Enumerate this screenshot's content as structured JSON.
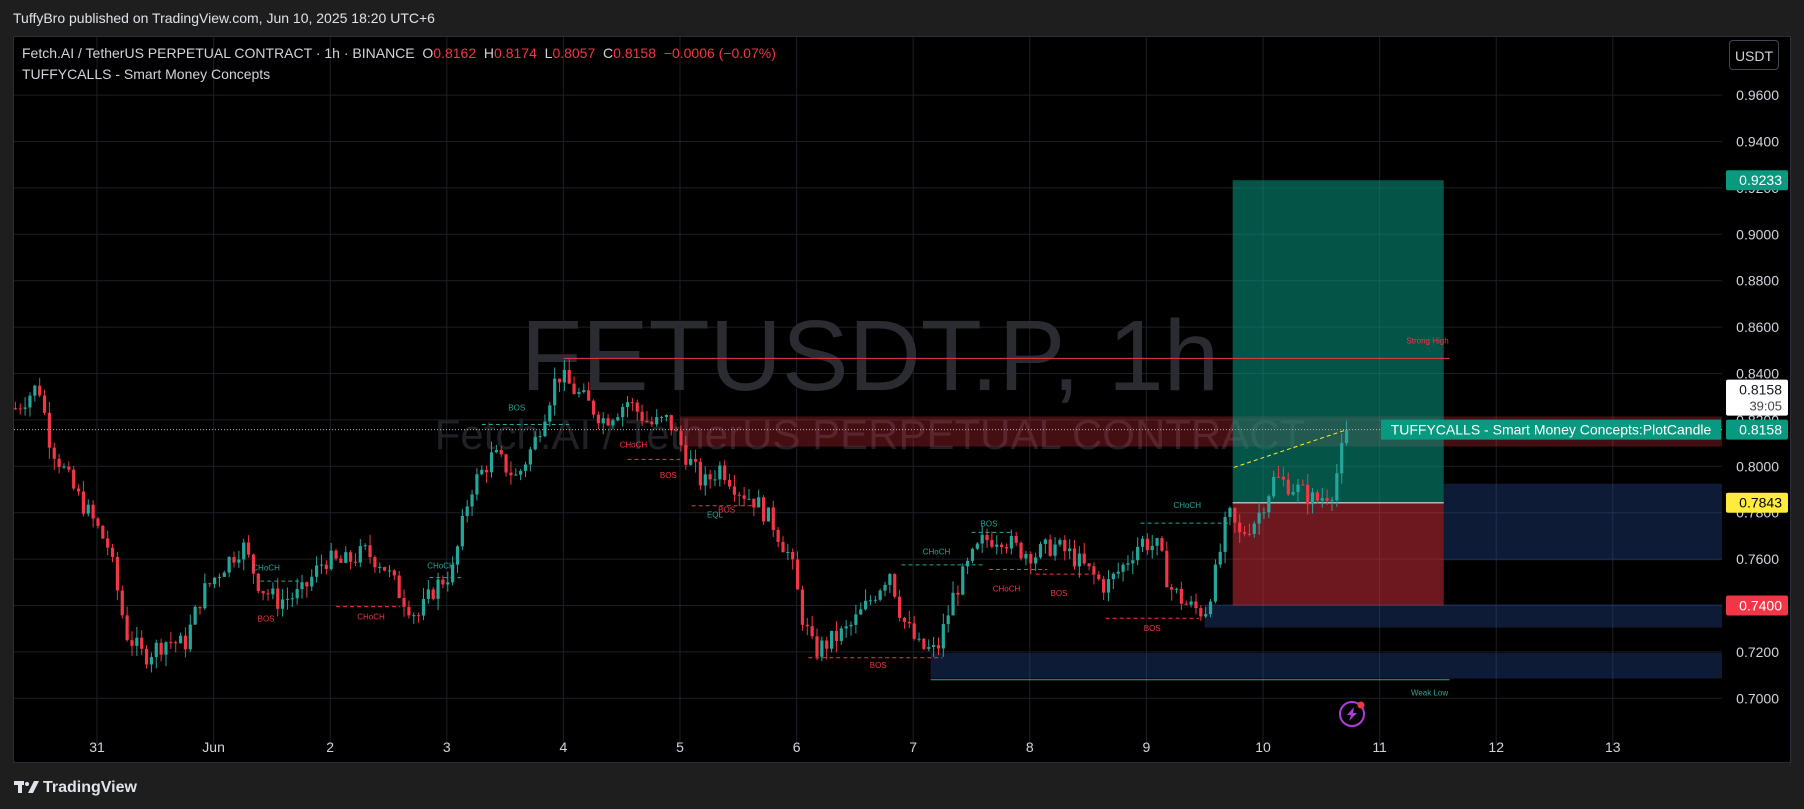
{
  "publish_line": "TuffyBro published on TradingView.com, Jun 10, 2025 18:20 UTC+6",
  "legend": {
    "symbol_line": "Fetch.AI / TetherUS PERPETUAL CONTRACT · 1h · BINANCE",
    "o_label": "O",
    "o_value": "0.8162",
    "h_label": "H",
    "h_value": "0.8174",
    "l_label": "L",
    "l_value": "0.8057",
    "c_label": "C",
    "c_value": "0.8158",
    "change": "−0.0006 (−0.07%)",
    "indicator": "TUFFYCALLS - Smart Money Concepts"
  },
  "currency_button": "USDT",
  "watermark": {
    "symbol": "FETUSDT.P, 1h",
    "name": "Fetch.AI / TetherUS PERPETUAL CONTRACT"
  },
  "footer_brand": "TradingView",
  "colors": {
    "up": "#26a69a",
    "down": "#f23645",
    "target": "#089981",
    "stop": "#f23645",
    "entry": "#ffeb3b"
  },
  "chart_data": {
    "type": "candlestick",
    "symbol": "FETUSDT.P",
    "interval": "1h",
    "ylim": [
      0.69,
      0.98
    ],
    "y_ticks": [
      "0.9600",
      "0.9400",
      "0.9200",
      "0.9000",
      "0.8800",
      "0.8600",
      "0.8400",
      "0.8200",
      "0.8000",
      "0.7800",
      "0.7600",
      "0.7400",
      "0.7200",
      "0.7000"
    ],
    "x_ticks": [
      {
        "label": "31",
        "pos": 0.0
      },
      {
        "label": "Jun",
        "pos": 1.0
      },
      {
        "label": "2",
        "pos": 2.0
      },
      {
        "label": "3",
        "pos": 3.0
      },
      {
        "label": "4",
        "pos": 4.0
      },
      {
        "label": "5",
        "pos": 5.0
      },
      {
        "label": "6",
        "pos": 6.0
      },
      {
        "label": "7",
        "pos": 7.0
      },
      {
        "label": "8",
        "pos": 8.0
      },
      {
        "label": "9",
        "pos": 9.0
      },
      {
        "label": "10",
        "pos": 10.0
      },
      {
        "label": "11",
        "pos": 11.0
      },
      {
        "label": "12",
        "pos": 12.0
      },
      {
        "label": "13",
        "pos": 13.0
      }
    ],
    "price_path": [
      [
        -0.7,
        0.825
      ],
      [
        -0.5,
        0.835
      ],
      [
        -0.4,
        0.81
      ],
      [
        -0.2,
        0.79
      ],
      [
        -0.05,
        0.778
      ],
      [
        0.1,
        0.765
      ],
      [
        0.25,
        0.728
      ],
      [
        0.4,
        0.718
      ],
      [
        0.6,
        0.725
      ],
      [
        0.75,
        0.723
      ],
      [
        0.9,
        0.745
      ],
      [
        1.1,
        0.758
      ],
      [
        1.25,
        0.766
      ],
      [
        1.4,
        0.748
      ],
      [
        1.55,
        0.742
      ],
      [
        1.75,
        0.745
      ],
      [
        1.95,
        0.76
      ],
      [
        2.1,
        0.758
      ],
      [
        2.3,
        0.763
      ],
      [
        2.45,
        0.758
      ],
      [
        2.6,
        0.745
      ],
      [
        2.75,
        0.735
      ],
      [
        2.9,
        0.748
      ],
      [
        3.05,
        0.755
      ],
      [
        3.2,
        0.79
      ],
      [
        3.4,
        0.805
      ],
      [
        3.6,
        0.795
      ],
      [
        3.75,
        0.81
      ],
      [
        3.95,
        0.84
      ],
      [
        4.15,
        0.83
      ],
      [
        4.35,
        0.82
      ],
      [
        4.55,
        0.828
      ],
      [
        4.75,
        0.818
      ],
      [
        4.9,
        0.82
      ],
      [
        5.05,
        0.805
      ],
      [
        5.2,
        0.792
      ],
      [
        5.35,
        0.8
      ],
      [
        5.5,
        0.79
      ],
      [
        5.65,
        0.785
      ],
      [
        5.8,
        0.775
      ],
      [
        5.95,
        0.76
      ],
      [
        6.05,
        0.735
      ],
      [
        6.15,
        0.72
      ],
      [
        6.3,
        0.725
      ],
      [
        6.45,
        0.73
      ],
      [
        6.6,
        0.74
      ],
      [
        6.8,
        0.755
      ],
      [
        6.9,
        0.735
      ],
      [
        7.05,
        0.722
      ],
      [
        7.2,
        0.72
      ],
      [
        7.35,
        0.745
      ],
      [
        7.5,
        0.76
      ],
      [
        7.6,
        0.768
      ],
      [
        7.75,
        0.77
      ],
      [
        7.9,
        0.764
      ],
      [
        8.05,
        0.762
      ],
      [
        8.2,
        0.766
      ],
      [
        8.35,
        0.762
      ],
      [
        8.5,
        0.755
      ],
      [
        8.65,
        0.748
      ],
      [
        8.8,
        0.757
      ],
      [
        8.95,
        0.768
      ],
      [
        9.1,
        0.765
      ],
      [
        9.2,
        0.748
      ],
      [
        9.35,
        0.74
      ],
      [
        9.5,
        0.737
      ],
      [
        9.6,
        0.755
      ],
      [
        9.7,
        0.78
      ],
      [
        9.8,
        0.77
      ],
      [
        9.95,
        0.778
      ],
      [
        10.1,
        0.795
      ],
      [
        10.3,
        0.79
      ],
      [
        10.45,
        0.785
      ],
      [
        10.6,
        0.79
      ],
      [
        10.72,
        0.8158
      ]
    ],
    "position": {
      "type": "long",
      "entry": 0.7843,
      "target": 0.9233,
      "stop": 0.74,
      "x_start": 9.74,
      "x_end": 11.55
    },
    "current_price": {
      "value": "0.8158",
      "countdown": "39:05"
    },
    "price_labels": [
      {
        "value": "0.9233",
        "kind": "target"
      },
      {
        "value": "0.7843",
        "kind": "entry"
      },
      {
        "value": "0.7400",
        "kind": "stop"
      },
      {
        "value": "0.8158",
        "kind": "plotcandle"
      }
    ],
    "plotcandle_label": "TUFFYCALLS - Smart Money Concepts:PlotCandle",
    "zones": [
      {
        "kind": "supply",
        "y_top": 0.8215,
        "y_bottom": 0.8085,
        "x_start": 5.0,
        "x_end": 13.95
      },
      {
        "kind": "demand",
        "y_top": 0.7925,
        "y_bottom": 0.7595,
        "x_start": 11.55,
        "x_end": 13.95
      },
      {
        "kind": "demand",
        "y_top": 0.7405,
        "y_bottom": 0.7305,
        "x_start": 9.5,
        "x_end": 13.95
      },
      {
        "kind": "demand",
        "y_top": 0.7195,
        "y_bottom": 0.7085,
        "x_start": 7.15,
        "x_end": 13.95
      }
    ],
    "strong_high": {
      "label": "Strong High",
      "value": 0.8465,
      "x_start": 4.0,
      "x_end": 11.6
    },
    "weak_low": {
      "label": "Weak Low",
      "value": 0.708,
      "x_start": 7.15,
      "x_end": 11.6
    },
    "structure_labels": [
      {
        "text": "CHoCH",
        "x": 1.45,
        "y": 0.755,
        "color": "up"
      },
      {
        "text": "BOS",
        "x": 1.45,
        "y": 0.733,
        "color": "down"
      },
      {
        "text": "CHoCH",
        "x": 2.35,
        "y": 0.734,
        "color": "down"
      },
      {
        "text": "CHoCH",
        "x": 2.95,
        "y": 0.756,
        "color": "up"
      },
      {
        "text": "BOS",
        "x": 3.6,
        "y": 0.824,
        "color": "up"
      },
      {
        "text": "CHoCH",
        "x": 4.6,
        "y": 0.808,
        "color": "down"
      },
      {
        "text": "BOS",
        "x": 4.9,
        "y": 0.795,
        "color": "down"
      },
      {
        "text": "BOS",
        "x": 5.4,
        "y": 0.78,
        "color": "down"
      },
      {
        "text": "EQL",
        "x": 5.3,
        "y": 0.778,
        "color": "up"
      },
      {
        "text": "CHoCH",
        "x": 7.2,
        "y": 0.762,
        "color": "up"
      },
      {
        "text": "BOS",
        "x": 6.7,
        "y": 0.713,
        "color": "down"
      },
      {
        "text": "BOS",
        "x": 7.65,
        "y": 0.774,
        "color": "up"
      },
      {
        "text": "CHoCH",
        "x": 7.8,
        "y": 0.746,
        "color": "down"
      },
      {
        "text": "BOS",
        "x": 8.25,
        "y": 0.744,
        "color": "down"
      },
      {
        "text": "CHoCH",
        "x": 9.35,
        "y": 0.782,
        "color": "up"
      },
      {
        "text": "BOS",
        "x": 9.05,
        "y": 0.729,
        "color": "down"
      }
    ],
    "structure_lines": [
      {
        "x1": 1.4,
        "x2": 1.75,
        "y": 0.7505,
        "color": "up"
      },
      {
        "x1": 2.05,
        "x2": 2.6,
        "y": 0.7395,
        "color": "down"
      },
      {
        "x1": 2.85,
        "x2": 3.15,
        "y": 0.752,
        "color": "up"
      },
      {
        "x1": 3.3,
        "x2": 4.05,
        "y": 0.818,
        "color": "up"
      },
      {
        "x1": 4.55,
        "x2": 5.0,
        "y": 0.803,
        "color": "down"
      },
      {
        "x1": 5.1,
        "x2": 5.65,
        "y": 0.783,
        "color": "down"
      },
      {
        "x1": 6.1,
        "x2": 7.25,
        "y": 0.7175,
        "color": "down"
      },
      {
        "x1": 6.9,
        "x2": 7.6,
        "y": 0.7575,
        "color": "up"
      },
      {
        "x1": 7.5,
        "x2": 7.85,
        "y": 0.7715,
        "color": "up"
      },
      {
        "x1": 7.65,
        "x2": 8.15,
        "y": 0.7555,
        "color": "down"
      },
      {
        "x1": 8.05,
        "x2": 8.55,
        "y": 0.7535,
        "color": "down"
      },
      {
        "x1": 8.65,
        "x2": 9.45,
        "y": 0.7345,
        "color": "down"
      },
      {
        "x1": 8.95,
        "x2": 9.7,
        "y": 0.7755,
        "color": "up"
      },
      {
        "x1": 9.75,
        "x2": 10.72,
        "y": 0.7995,
        "color": "entry",
        "dashed_to": 0.8158
      }
    ]
  }
}
